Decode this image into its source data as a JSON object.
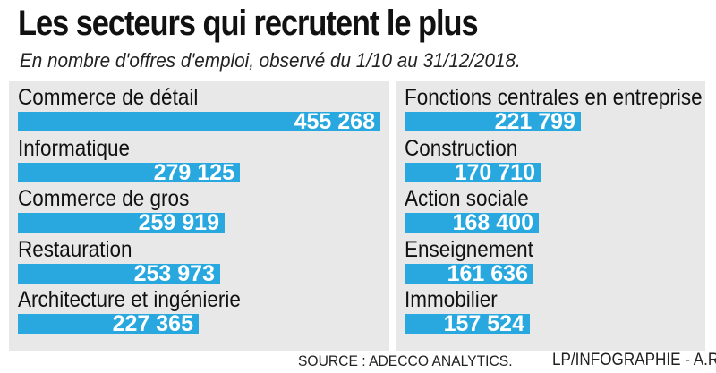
{
  "title": "Les secteurs qui recrutent le plus",
  "subtitle": "En nombre d'offres d'emploi, observé du 1/10 au 31/12/2018.",
  "source": "SOURCE : ADECCO ANALYTICS.",
  "credit": "LP/INFOGRAPHIE - A.R.",
  "colors": {
    "bar": "#29a8e0",
    "panel": "#e8e8e8",
    "value_text": "#ffffff"
  },
  "chart_data": {
    "type": "bar",
    "orientation": "horizontal",
    "title": "Les secteurs qui recrutent le plus",
    "subtitle": "En nombre d'offres d'emploi, observé du 1/10 au 31/12/2018.",
    "categories": [
      "Commerce de détail",
      "Informatique",
      "Commerce de gros",
      "Restauration",
      "Architecture et ingénierie",
      "Fonctions centrales en entreprise",
      "Construction",
      "Action sociale",
      "Enseignement",
      "Immobilier"
    ],
    "values": [
      455268,
      279125,
      259919,
      253973,
      227365,
      221799,
      170710,
      168400,
      161636,
      157524
    ],
    "value_labels": [
      "455 268",
      "279 125",
      "259 919",
      "253 973",
      "227 365",
      "221 799",
      "170 710",
      "168 400",
      "161 636",
      "157 524"
    ],
    "grid": false,
    "legend": "none"
  }
}
